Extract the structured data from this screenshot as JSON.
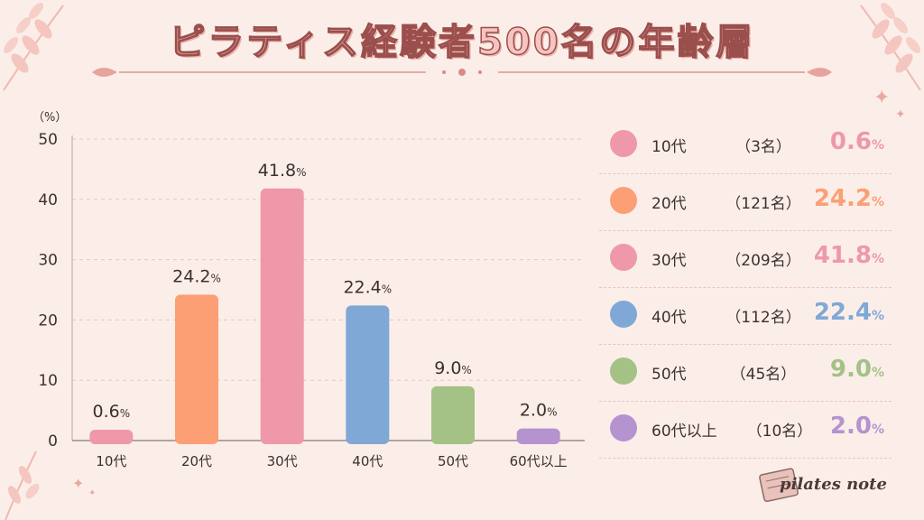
{
  "title": "ピラティス経験者500名の年齢層",
  "brand": "pilates note",
  "colors": {
    "background": "#fbeee9",
    "10s": "#ef98a9",
    "20s": "#fc9f75",
    "30s": "#ef98a9",
    "40s": "#7fa8d6",
    "50s": "#a4c186",
    "60plus": "#b493cf"
  },
  "chart_data": {
    "type": "bar",
    "y_unit_label": "（%）",
    "categories": [
      "10代",
      "20代",
      "30代",
      "40代",
      "50代",
      "60代以上"
    ],
    "values": [
      0.6,
      24.2,
      41.8,
      22.4,
      9.0,
      2.0
    ],
    "value_labels": [
      "0.6",
      "24.2",
      "41.8",
      "22.4",
      "9.0",
      "2.0"
    ],
    "value_unit": "%",
    "ylim": [
      0,
      50
    ],
    "yticks": [
      "0",
      "10",
      "20",
      "30",
      "40",
      "50"
    ],
    "grid": true,
    "colors": [
      "#ef98a9",
      "#fc9f75",
      "#ef98a9",
      "#7fa8d6",
      "#a4c186",
      "#b493cf"
    ]
  },
  "legend": [
    {
      "label": "10代",
      "count": "（3名）",
      "pct": "0.6",
      "unit": "%",
      "color": "#ef98a9"
    },
    {
      "label": "20代",
      "count": "（121名）",
      "pct": "24.2",
      "unit": "%",
      "color": "#fc9f75"
    },
    {
      "label": "30代",
      "count": "（209名）",
      "pct": "41.8",
      "unit": "%",
      "color": "#ef98a9"
    },
    {
      "label": "40代",
      "count": "（112名）",
      "pct": "22.4",
      "unit": "%",
      "color": "#7fa8d6"
    },
    {
      "label": "50代",
      "count": "（45名）",
      "pct": "9.0",
      "unit": "%",
      "color": "#a4c186"
    },
    {
      "label": "60代以上",
      "count": "（10名）",
      "pct": "2.0",
      "unit": "%",
      "color": "#b493cf"
    }
  ]
}
